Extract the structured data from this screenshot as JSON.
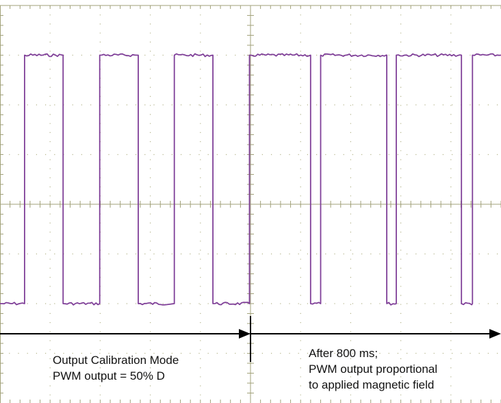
{
  "chart_data": {
    "type": "line",
    "title": "",
    "xlabel": "",
    "ylabel": "",
    "grid": true,
    "xlim": [
      0,
      10
    ],
    "ylim": [
      -4,
      4
    ],
    "series": [
      {
        "color": "#7f3f98",
        "x": [
          0.0,
          0.49,
          0.49,
          1.26,
          1.26,
          1.99,
          1.99,
          2.76,
          2.76,
          3.48,
          3.48,
          4.25,
          4.25,
          4.98,
          4.98,
          6.2,
          6.2,
          6.4,
          6.4,
          7.72,
          7.72,
          7.91,
          7.91,
          9.21,
          9.21,
          9.43,
          9.43,
          10.0
        ],
        "y": [
          -2.0,
          -2.0,
          3.0,
          3.0,
          -2.0,
          -2.0,
          3.0,
          3.0,
          -2.0,
          -2.0,
          3.0,
          3.0,
          -2.0,
          -2.0,
          3.0,
          3.0,
          -2.0,
          -2.0,
          3.0,
          3.0,
          -2.0,
          -2.0,
          3.0,
          3.0,
          -2.0,
          -2.0,
          3.0,
          3.0
        ]
      }
    ],
    "colors": {
      "trace": "#7f3f98",
      "grid": "#b5b58c",
      "axis": "#a2a27a",
      "arrow": "#000000"
    }
  },
  "annotations": {
    "left_line1": "Output Calibration Mode",
    "left_line2": "PWM output = 50% D",
    "right_line1": "After 800 ms;",
    "right_line2": "PWM output proportional",
    "right_line3": "to applied magnetic field"
  }
}
